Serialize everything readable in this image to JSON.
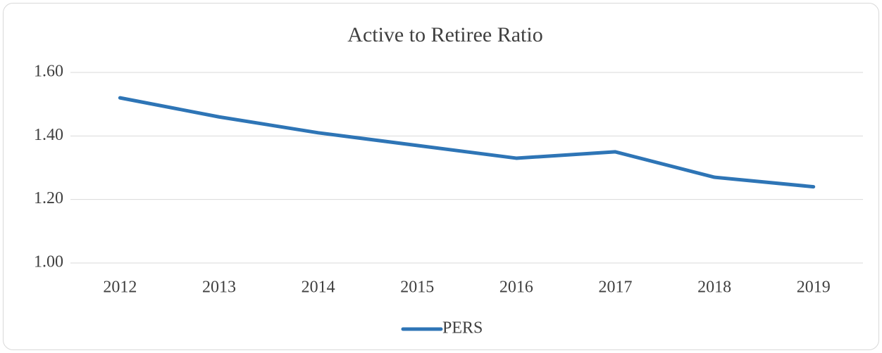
{
  "chart_data": {
    "type": "line",
    "title": "Active to Retiree Ratio",
    "categories": [
      "2012",
      "2013",
      "2014",
      "2015",
      "2016",
      "2017",
      "2018",
      "2019"
    ],
    "series": [
      {
        "name": "PERS",
        "color": "#2e75b6",
        "values": [
          1.52,
          1.46,
          1.41,
          1.37,
          1.33,
          1.35,
          1.27,
          1.24
        ]
      }
    ],
    "ylim": [
      1.0,
      1.6
    ],
    "yticks": [
      {
        "value": 1.0,
        "label": "1.00"
      },
      {
        "value": 1.2,
        "label": "1.20"
      },
      {
        "value": 1.4,
        "label": "1.40"
      },
      {
        "value": 1.6,
        "label": "1.60"
      }
    ],
    "grid": true,
    "legend": "bottom"
  }
}
